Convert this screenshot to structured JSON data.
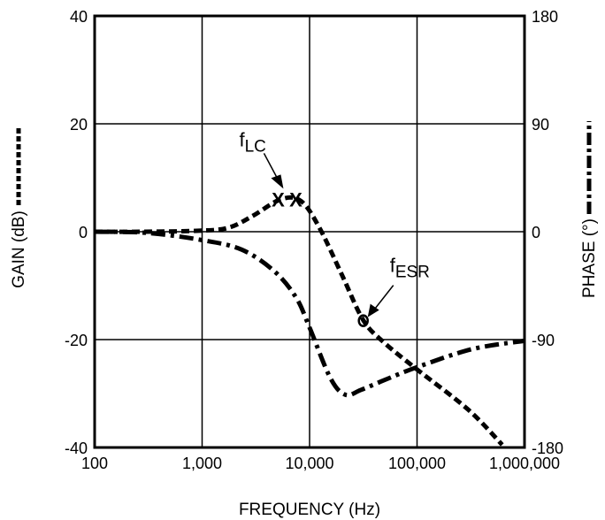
{
  "chart_data": {
    "type": "line",
    "xlabel": "FREQUENCY (Hz)",
    "ylabel": "GAIN (dB)",
    "y2label": "PHASE (°)",
    "xscale": "log",
    "xlim": [
      100,
      1000000
    ],
    "ylim": [
      -40,
      40
    ],
    "y2lim": [
      -180,
      180
    ],
    "grid": true,
    "x_ticks": [
      "100",
      "1,000",
      "10,000",
      "100,000",
      "1,000,000"
    ],
    "x_tick_values": [
      100,
      1000,
      10000,
      100000,
      1000000
    ],
    "y_ticks": [
      "40",
      "20",
      "0",
      "-20",
      "-40"
    ],
    "y_tick_values": [
      40,
      20,
      0,
      -20,
      -40
    ],
    "y2_ticks": [
      "180",
      "90",
      "0",
      "-90",
      "-180"
    ],
    "y2_tick_values": [
      180,
      90,
      0,
      -90,
      -180
    ],
    "series": [
      {
        "axis": "left",
        "style": "dashed",
        "x": [
          100,
          300,
          1000,
          1800,
          3000,
          5400,
          8300,
          12300,
          20000,
          31600,
          49000,
          98000,
          300000,
          620000
        ],
        "y": [
          0,
          0,
          0.2,
          0.8,
          3,
          6,
          5.7,
          0.8,
          -8,
          -16.4,
          -20.5,
          -25.4,
          -33,
          -39.5
        ]
      },
      {
        "axis": "right",
        "style": "dash-dot",
        "x": [
          100,
          310,
          1000,
          2340,
          4700,
          7500,
          10000,
          15600,
          21500,
          30000,
          49000,
          100000,
          324000,
          1000000
        ],
        "y": [
          0,
          -1,
          -7,
          -15,
          -33,
          -55,
          -80,
          -122,
          -136,
          -132,
          -124,
          -113,
          -98,
          -91
        ]
      }
    ],
    "annotations": [
      {
        "text": "f",
        "sub": "LC",
        "marker": "XX",
        "x": 6400,
        "y": 6
      },
      {
        "text": "f",
        "sub": "ESR",
        "marker": "circle",
        "x": 31600,
        "y": -16.5
      }
    ]
  }
}
